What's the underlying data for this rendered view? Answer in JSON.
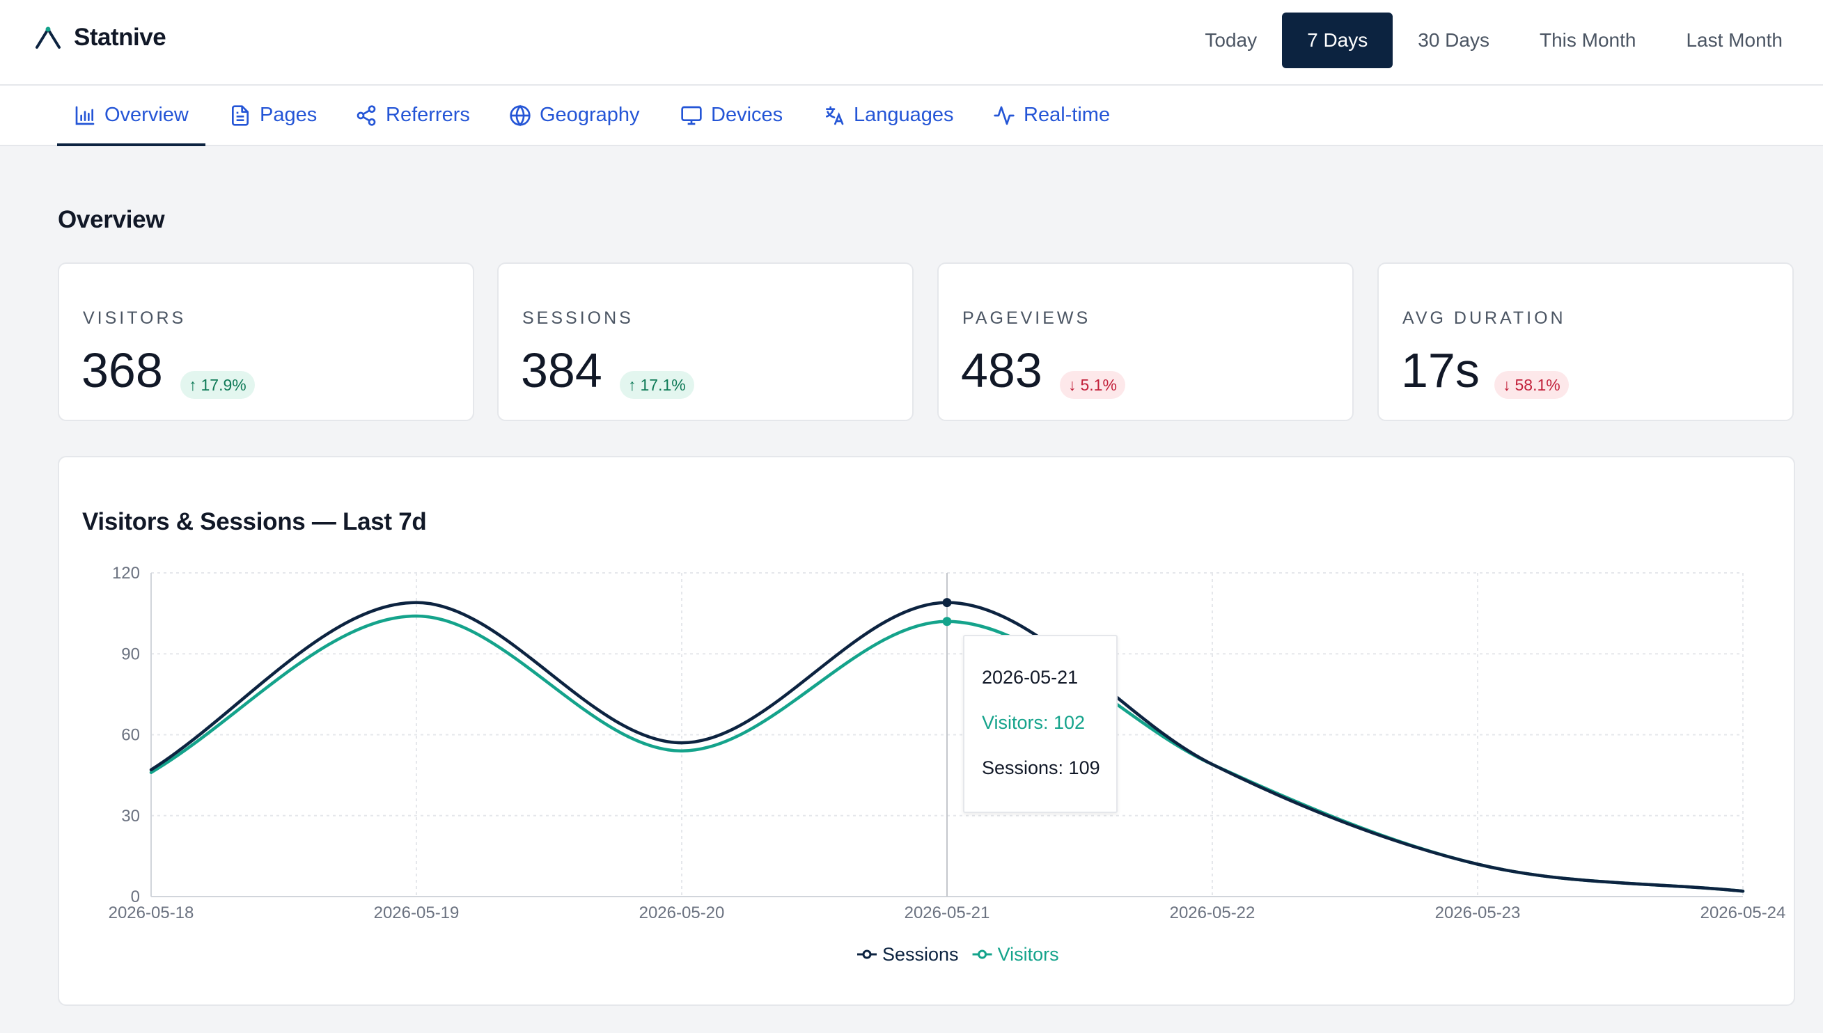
{
  "app": {
    "name": "Statnive"
  },
  "range_buttons": [
    "Today",
    "7 Days",
    "30 Days",
    "This Month",
    "Last Month"
  ],
  "range_selected": "7 Days",
  "tabs": [
    {
      "label": "Overview",
      "icon": "bar-chart-icon"
    },
    {
      "label": "Pages",
      "icon": "document-icon"
    },
    {
      "label": "Referrers",
      "icon": "share-icon"
    },
    {
      "label": "Geography",
      "icon": "globe-icon"
    },
    {
      "label": "Devices",
      "icon": "monitor-icon"
    },
    {
      "label": "Languages",
      "icon": "translate-icon"
    },
    {
      "label": "Real-time",
      "icon": "activity-icon"
    }
  ],
  "active_tab": "Overview",
  "section_title": "Overview",
  "stats": [
    {
      "label": "VISITORS",
      "value": "368",
      "change": "17.9%",
      "direction": "up"
    },
    {
      "label": "SESSIONS",
      "value": "384",
      "change": "17.1%",
      "direction": "up"
    },
    {
      "label": "PAGEVIEWS",
      "value": "483",
      "change": "5.1%",
      "direction": "down"
    },
    {
      "label": "AVG DURATION",
      "value": "17s",
      "change": "58.1%",
      "direction": "down"
    }
  ],
  "colors": {
    "sessions": "#0c2340",
    "visitors": "#14a38b",
    "accent": "#2455d6",
    "up": "#0f7a57",
    "down": "#c2203a"
  },
  "chart_title": "Visitors & Sessions — Last 7d",
  "chart_data": {
    "type": "line",
    "title": "Visitors & Sessions — Last 7d",
    "x": [
      "2026-05-18",
      "2026-05-19",
      "2026-05-20",
      "2026-05-21",
      "2026-05-22",
      "2026-05-23",
      "2026-05-24"
    ],
    "series": [
      {
        "name": "Sessions",
        "values": [
          47,
          109,
          57,
          109,
          49,
          12,
          2
        ]
      },
      {
        "name": "Visitors",
        "values": [
          46,
          104,
          54,
          102,
          49,
          12,
          2
        ]
      }
    ],
    "ylim": [
      0,
      120
    ],
    "yticks": [
      0,
      30,
      60,
      90,
      120
    ],
    "grid": true,
    "legend": "bottom-center"
  },
  "tooltip": {
    "date": "2026-05-21",
    "visitors": "Visitors: 102",
    "sessions": "Sessions: 109"
  }
}
